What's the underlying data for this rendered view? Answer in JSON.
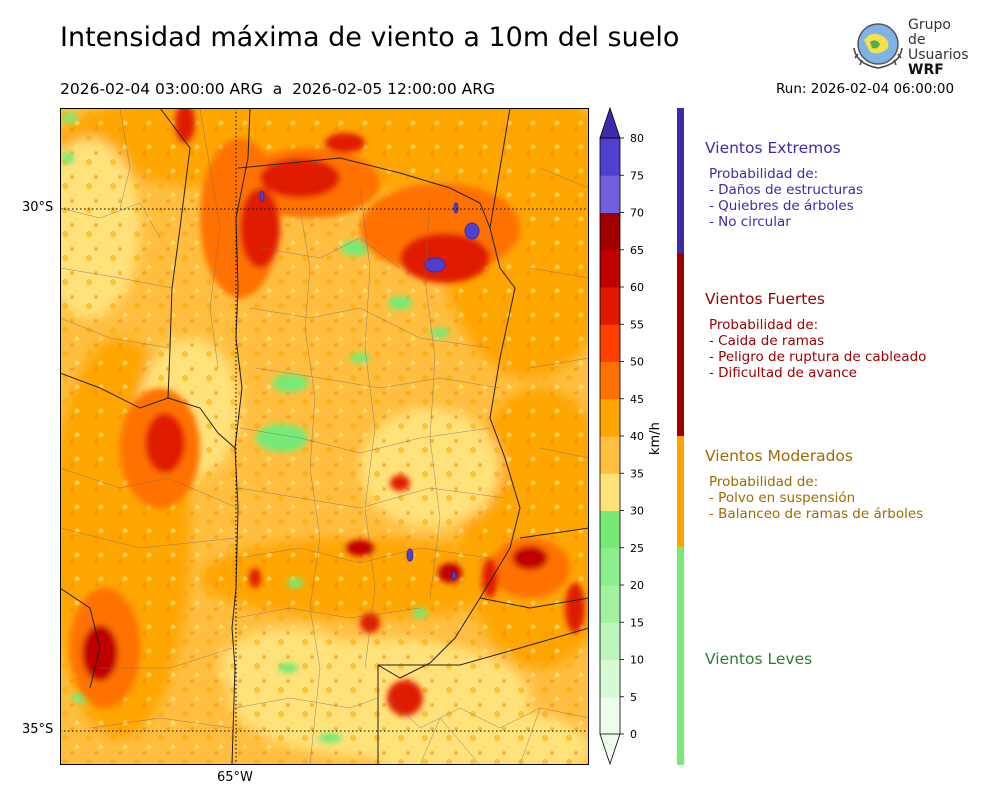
{
  "header": {
    "title": "Intensidad máxima de viento a 10m del suelo",
    "period": "2026-02-04 03:00:00 ARG  a  2026-02-05 12:00:00 ARG",
    "run": "Run: 2026-02-04 06:00:00"
  },
  "logo": {
    "line1": "Grupo de",
    "line2": "Usuarios",
    "line3": "WRF"
  },
  "map": {
    "lat_labels": [
      "30°S",
      "35°S"
    ],
    "lon_labels": [
      "65°W"
    ]
  },
  "colorbar": {
    "unit": "km/h",
    "ticks": [
      0,
      5,
      10,
      15,
      20,
      25,
      30,
      35,
      40,
      45,
      50,
      55,
      60,
      65,
      70,
      75,
      80
    ],
    "colors": [
      "#effdef",
      "#d6fad6",
      "#bbf5bb",
      "#a2f2a2",
      "#8cee8c",
      "#76ea76",
      "#ffe27a",
      "#ffbe40",
      "#ffa500",
      "#ff7200",
      "#ff4000",
      "#e01a00",
      "#c00000",
      "#a00000",
      "#7060e0",
      "#5040d0",
      "#4030b8",
      "#3d2aaa"
    ],
    "color_names": {
      "light": "#76ea76",
      "moderate": "#ffa500",
      "strong": "#a00000",
      "extreme": "#3d2aaa"
    }
  },
  "categories": [
    {
      "title": "Vientos Extremos",
      "color": "#3d2aaa",
      "lines": [
        "Probabilidad de:",
        "- Daños de estructuras",
        "- Quiebres de árboles",
        "- No circular"
      ]
    },
    {
      "title": "Vientos Fuertes",
      "color": "#a00000",
      "lines": [
        "Probabilidad de:",
        "- Caida de ramas",
        "- Peligro de ruptura de cableado",
        "- Dificultad de avance"
      ]
    },
    {
      "title": "Vientos Moderados",
      "color": "#a06a00",
      "lines": [
        "Probabilidad de:",
        "- Polvo en suspensión",
        "- Balanceo de ramas de árboles"
      ]
    },
    {
      "title": "Vientos Leves",
      "color": "#2e7d32",
      "lines": []
    }
  ]
}
